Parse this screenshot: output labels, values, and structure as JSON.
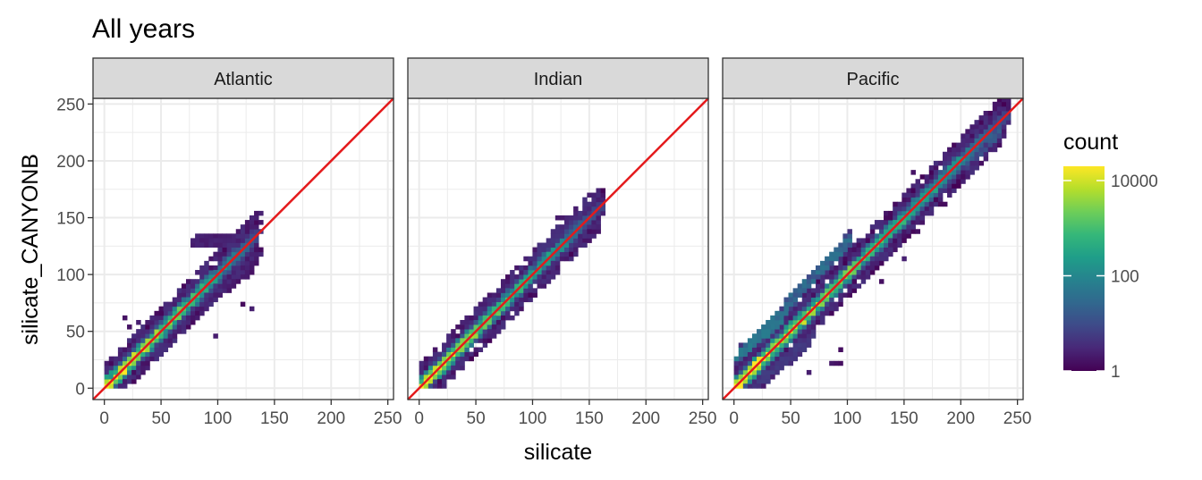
{
  "chart_data": {
    "type": "heatmap",
    "subtype": "2d-binned scatter (hexbin/bin2d) faceted",
    "title": "All years",
    "xlabel": "silicate",
    "ylabel": "silicate_CANYONB",
    "xlim": [
      -10,
      255
    ],
    "ylim": [
      -10,
      255
    ],
    "x_ticks": [
      0,
      50,
      100,
      150,
      200,
      250
    ],
    "y_ticks": [
      0,
      50,
      100,
      150,
      200,
      250
    ],
    "x_tick_labels": [
      "0",
      "50",
      "100",
      "150",
      "200",
      "250"
    ],
    "y_tick_labels": [
      "0",
      "50",
      "100",
      "150",
      "200",
      "250"
    ],
    "reference_line": {
      "slope": 1,
      "intercept": 0,
      "color": "#e41a1c"
    },
    "grid": true,
    "color_scale": {
      "name": "count",
      "palette": "viridis",
      "scale": "log10",
      "range": [
        1,
        20000
      ],
      "breaks": [
        1,
        100,
        10000
      ],
      "break_labels": [
        "1",
        "100",
        "10000"
      ]
    },
    "legend_position": "right",
    "facets": [
      {
        "label": "Atlantic",
        "x_range": [
          0,
          137
        ],
        "core_log10_max": 4.3,
        "spread": 6,
        "branches": [
          {
            "x0": 78,
            "x1": 122,
            "y0": 128,
            "y1": 128,
            "width": 4,
            "log10": 0.35
          },
          {
            "x0": 100,
            "x1": 132,
            "y0": 88,
            "y1": 110,
            "width": 8,
            "log10": 0.25
          }
        ],
        "outliers": [
          [
            88,
            100
          ],
          [
            22,
            52
          ],
          [
            98,
            45
          ],
          [
            122,
            73
          ],
          [
            130,
            70
          ],
          [
            17,
            60
          ],
          [
            30,
            57
          ]
        ]
      },
      {
        "label": "Indian",
        "x_range": [
          0,
          160
        ],
        "core_log10_max": 4.1,
        "spread": 6,
        "branches": [
          {
            "x0": 105,
            "x1": 150,
            "y0": 120,
            "y1": 153,
            "width": 5,
            "log10": 0.5
          }
        ],
        "outliers": [
          [
            125,
            148
          ],
          [
            120,
            151
          ],
          [
            110,
            127
          ],
          [
            141,
            125
          ]
        ]
      },
      {
        "label": "Pacific",
        "x_range": [
          0,
          240
        ],
        "core_log10_max": 4.3,
        "spread": 6,
        "branches": [
          {
            "x0": 12,
            "x1": 105,
            "y0": 35,
            "y1": 135,
            "width": 6,
            "log10": 1.3
          },
          {
            "x0": 150,
            "x1": 238,
            "y0": 148,
            "y1": 230,
            "width": 5,
            "log10": 1.0
          },
          {
            "x0": 18,
            "x1": 70,
            "y0": 2,
            "y1": 45,
            "width": 6,
            "log10": 0.6
          },
          {
            "x0": 5,
            "x1": 45,
            "y0": 30,
            "y1": 65,
            "width": 6,
            "log10": 1.4
          }
        ],
        "outliers": [
          [
            157,
            190
          ],
          [
            160,
            137
          ],
          [
            150,
            113
          ],
          [
            92,
            32
          ],
          [
            93,
            22
          ],
          [
            88,
            22
          ],
          [
            84,
            22
          ],
          [
            64,
            14
          ],
          [
            129,
            95
          ],
          [
            170,
            171
          ],
          [
            200,
            181
          ],
          [
            135,
            112
          ],
          [
            185,
            160
          ],
          [
            125,
            125
          ]
        ]
      }
    ]
  }
}
